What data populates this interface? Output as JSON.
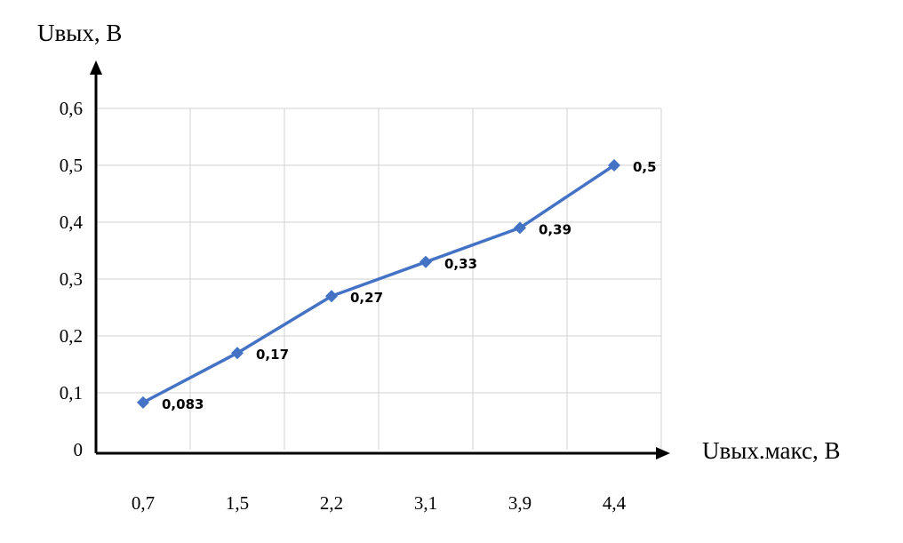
{
  "chart_data": {
    "type": "line",
    "categories": [
      "0,7",
      "1,5",
      "2,2",
      "3,1",
      "3,9",
      "4,4"
    ],
    "series": [
      {
        "values": [
          0.083,
          0.17,
          0.27,
          0.33,
          0.39,
          0.5
        ],
        "labels": [
          "0,083",
          "0,17",
          "0,27",
          "0,33",
          "0,39",
          "0,5"
        ],
        "color": "#4472c4",
        "marker": "diamond"
      }
    ],
    "ylabel": "Uвых, В",
    "xlabel": "Uвых.макс, В",
    "ylim": [
      0,
      0.6
    ],
    "yticks": [
      "0",
      "0,1",
      "0,2",
      "0,3",
      "0,4",
      "0,5",
      "0,6"
    ],
    "grid": true
  }
}
